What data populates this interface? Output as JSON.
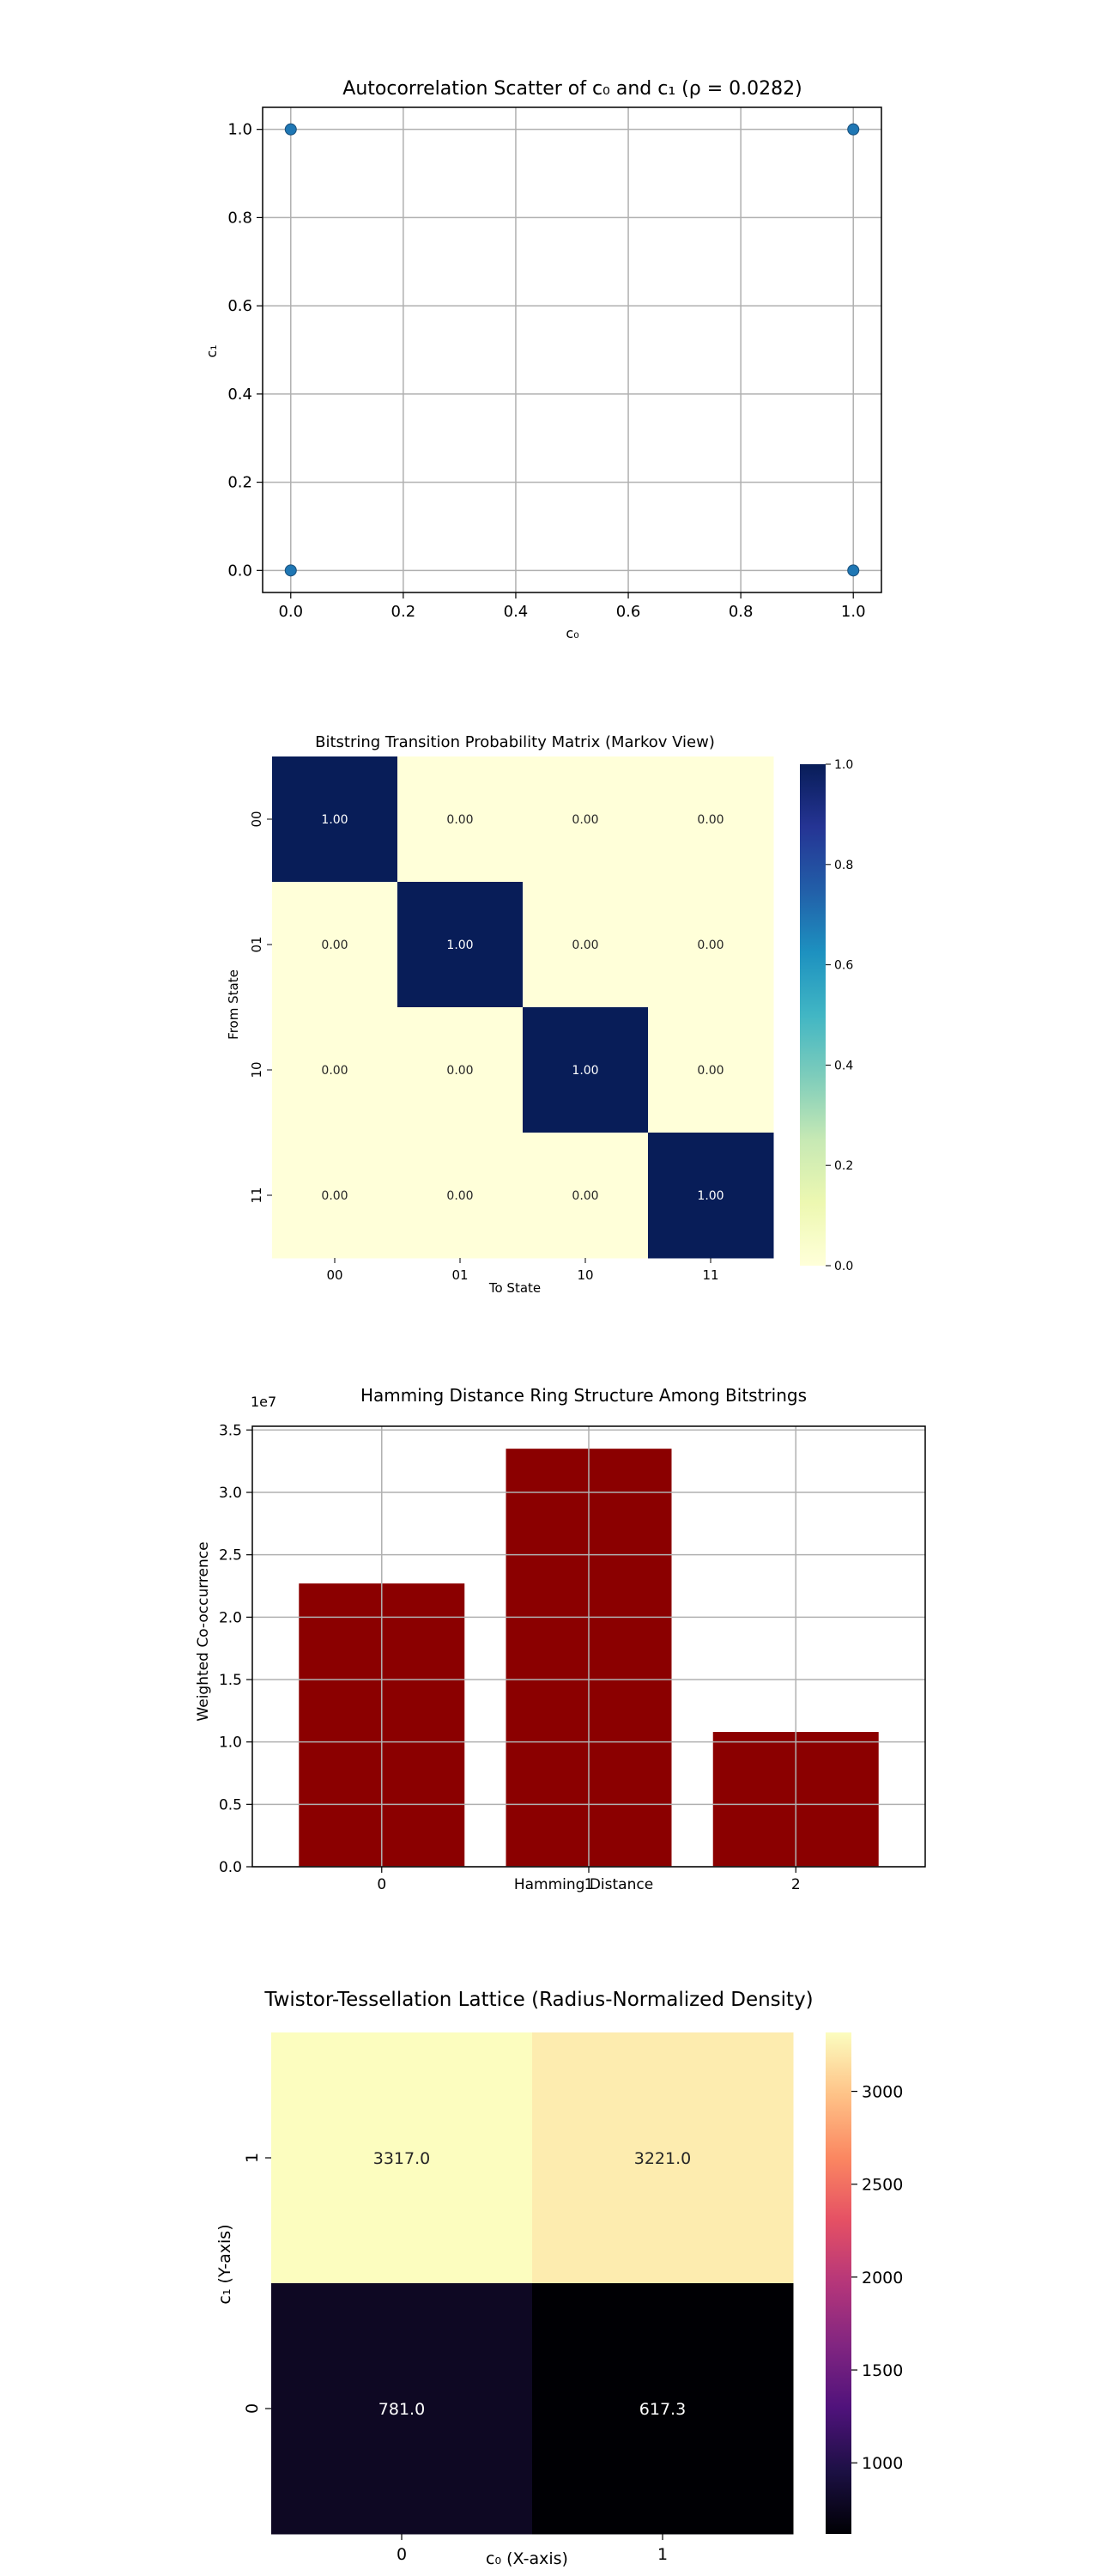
{
  "chart_data": [
    {
      "type": "scatter",
      "title": "Autocorrelation Scatter of c₀ and c₁ (ρ = 0.0282)",
      "xlabel": "c₀",
      "ylabel": "c₁",
      "xlim": [
        -0.05,
        1.05
      ],
      "ylim": [
        -0.05,
        1.05
      ],
      "xticks": [
        "0.0",
        "0.2",
        "0.4",
        "0.6",
        "0.8",
        "1.0"
      ],
      "yticks": [
        "0.0",
        "0.2",
        "0.4",
        "0.6",
        "0.8",
        "1.0"
      ],
      "grid": true,
      "points": [
        {
          "x": 0,
          "y": 1
        },
        {
          "x": 1,
          "y": 1
        },
        {
          "x": 0,
          "y": 0
        },
        {
          "x": 1,
          "y": 0
        }
      ],
      "color": "#1f77b4"
    },
    {
      "type": "heatmap",
      "title": "Bitstring Transition Probability Matrix (Markov View)",
      "xlabel": "To State",
      "ylabel": "From State",
      "x_categories": [
        "00",
        "01",
        "10",
        "11"
      ],
      "y_categories": [
        "00",
        "01",
        "10",
        "11"
      ],
      "values": [
        [
          1.0,
          0.0,
          0.0,
          0.0
        ],
        [
          0.0,
          1.0,
          0.0,
          0.0
        ],
        [
          0.0,
          0.0,
          1.0,
          0.0
        ],
        [
          0.0,
          0.0,
          0.0,
          1.0
        ]
      ],
      "cell_labels": [
        [
          "1.00",
          "0.00",
          "0.00",
          "0.00"
        ],
        [
          "0.00",
          "1.00",
          "0.00",
          "0.00"
        ],
        [
          "0.00",
          "0.00",
          "1.00",
          "0.00"
        ],
        [
          "0.00",
          "0.00",
          "0.00",
          "1.00"
        ]
      ],
      "colormap": "YlGnBu",
      "colorbar_range": [
        0.0,
        1.0
      ],
      "colorbar_ticks": [
        "0.0",
        "0.2",
        "0.4",
        "0.6",
        "0.8",
        "1.0"
      ]
    },
    {
      "type": "bar",
      "title": "Hamming Distance Ring Structure Among Bitstrings",
      "xlabel": "Hamming Distance",
      "ylabel": "Weighted Co-occurrence",
      "offset_label": "1e7",
      "categories": [
        "0",
        "1",
        "2"
      ],
      "values": [
        22700000,
        33500000,
        10800000
      ],
      "ylim": [
        0,
        35300000
      ],
      "yticks": [
        {
          "value": 0,
          "label": "0.0"
        },
        {
          "value": 5000000,
          "label": "0.5"
        },
        {
          "value": 10000000,
          "label": "1.0"
        },
        {
          "value": 15000000,
          "label": "1.5"
        },
        {
          "value": 20000000,
          "label": "2.0"
        },
        {
          "value": 25000000,
          "label": "2.5"
        },
        {
          "value": 30000000,
          "label": "3.0"
        },
        {
          "value": 35000000,
          "label": "3.5"
        }
      ],
      "grid": true,
      "color": "#8b0000"
    },
    {
      "type": "heatmap",
      "title": "Twistor-Tessellation Lattice (Radius-Normalized Density)",
      "xlabel": "c₀ (X-axis)",
      "ylabel": "c₁ (Y-axis)",
      "x_categories": [
        "0",
        "1"
      ],
      "y_categories": [
        "1",
        "0"
      ],
      "values": [
        [
          3317.0,
          3221.0
        ],
        [
          781.0,
          617.3
        ]
      ],
      "cell_labels": [
        [
          "3317.0",
          "3221.0"
        ],
        [
          "781.0",
          "617.3"
        ]
      ],
      "colormap": "magma",
      "colorbar_range": [
        617.3,
        3317.0
      ],
      "colorbar_ticks": [
        {
          "value": 1000,
          "label": "1000"
        },
        {
          "value": 1500,
          "label": "1500"
        },
        {
          "value": 2000,
          "label": "2000"
        },
        {
          "value": 2500,
          "label": "2500"
        },
        {
          "value": 3000,
          "label": "3000"
        }
      ]
    }
  ]
}
